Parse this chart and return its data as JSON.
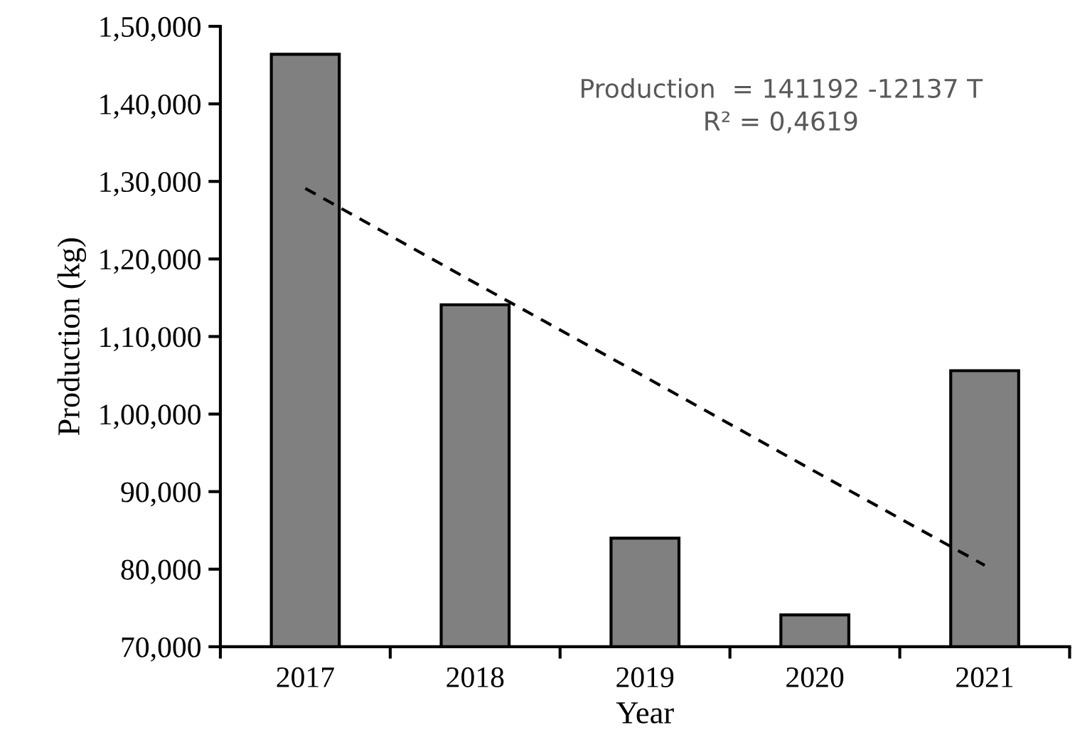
{
  "chart_data": {
    "type": "bar",
    "xlabel": "Year",
    "ylabel": "Production (kg)",
    "categories": [
      "2017",
      "2018",
      "2019",
      "2020",
      "2021"
    ],
    "series": [
      {
        "color": "#808080",
        "values": [
          146400,
          114100,
          84000,
          74100,
          105600
        ]
      },
      {
        "type": "line",
        "color": "#000000",
        "line_style": "dashed",
        "values": [
          129100,
          116900,
          104800,
          92600,
          80500
        ]
      }
    ],
    "ylim": [
      70000,
      150000
    ],
    "yticks": [
      {
        "value": 70000,
        "label": "70,000"
      },
      {
        "value": 80000,
        "label": "80,000"
      },
      {
        "value": 90000,
        "label": "90,000"
      },
      {
        "value": 100000,
        "label": "1,00,000"
      },
      {
        "value": 110000,
        "label": "1,10,000"
      },
      {
        "value": 120000,
        "label": "1,20,000"
      },
      {
        "value": 130000,
        "label": "1,30,000"
      },
      {
        "value": 140000,
        "label": "1,40,000"
      },
      {
        "value": 150000,
        "label": "1,50,000"
      }
    ],
    "annotations": [
      "Production  = 141192 -12137 T\nR² = 0,4619"
    ],
    "grid": false,
    "legend": false
  }
}
